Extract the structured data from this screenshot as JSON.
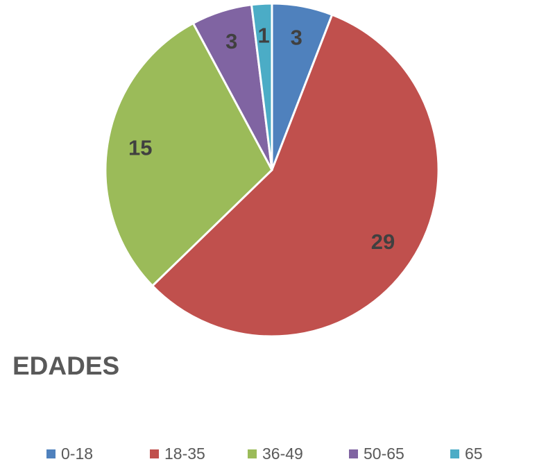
{
  "chart_data": {
    "type": "pie",
    "title": "EDADES",
    "categories": [
      "0-18",
      "18-35",
      "36-49",
      "50-65",
      "65"
    ],
    "values": [
      3,
      29,
      15,
      3,
      1
    ],
    "colors": [
      "#4f81bd",
      "#c0504d",
      "#9bbb59",
      "#8064a2",
      "#4bacc6"
    ],
    "legend": "bottom"
  }
}
